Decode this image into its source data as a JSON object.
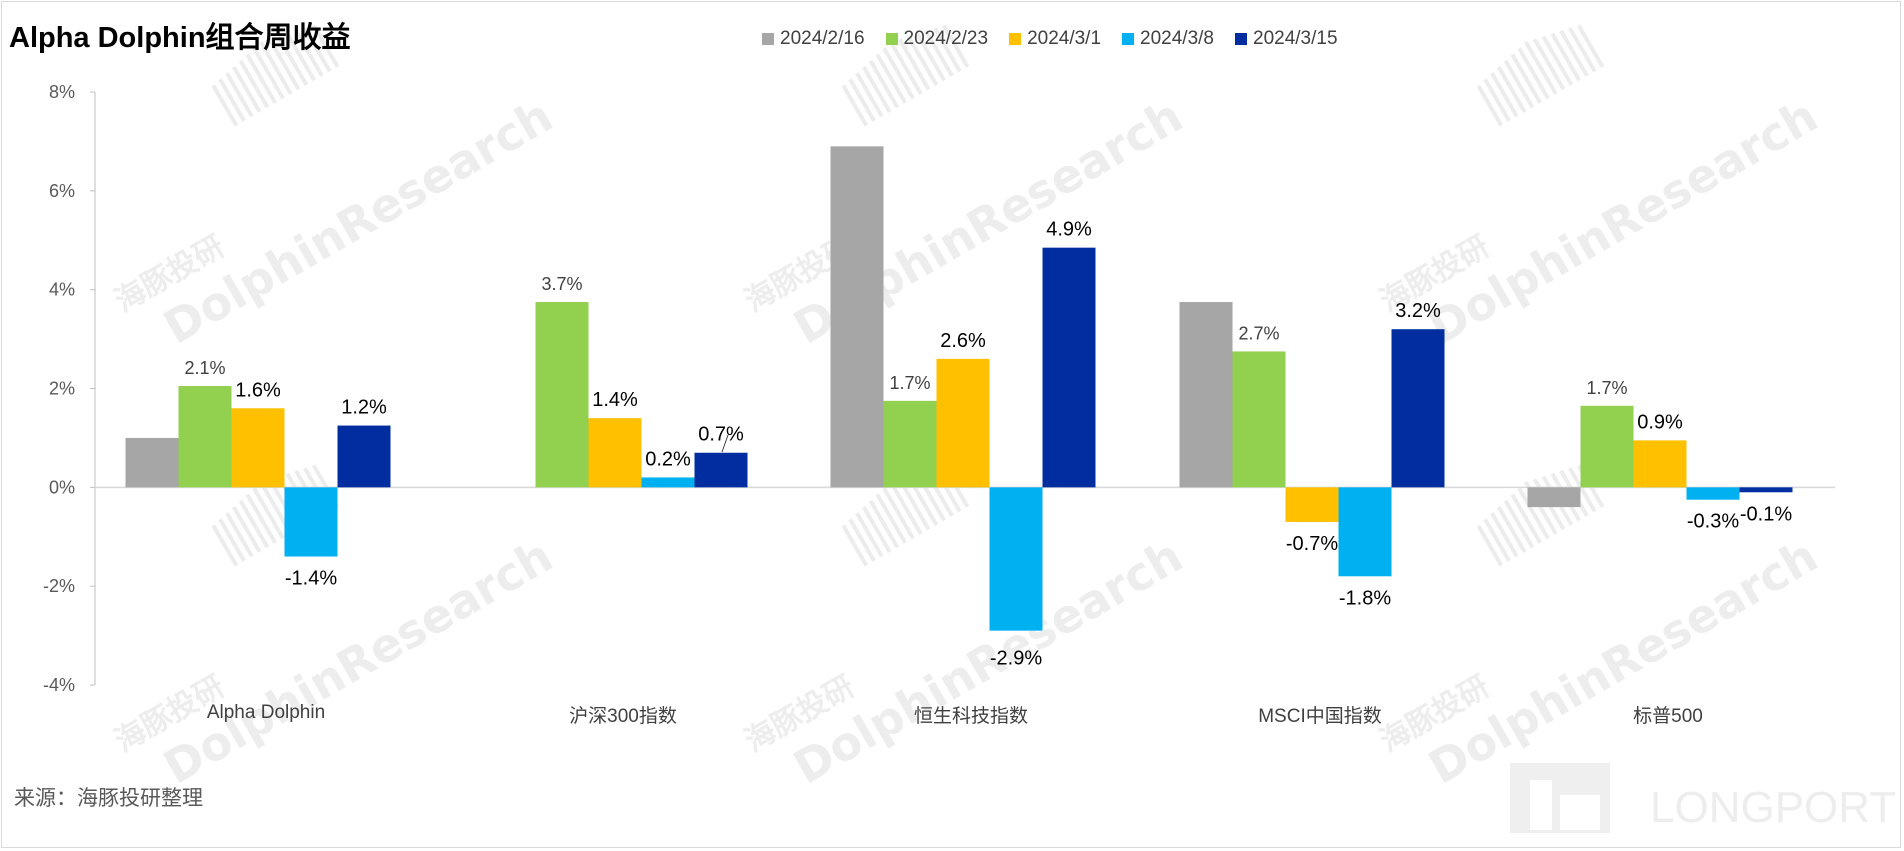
{
  "title": "Alpha Dolphin组合周收益",
  "source": "来源：海豚投研整理",
  "watermark": {
    "brand": "DolphinResearch",
    "cn": "海豚投研",
    "corner": "LONGPORT"
  },
  "chart_data": {
    "type": "bar",
    "categories": [
      "Alpha Dolphin",
      "沪深300指数",
      "恒生科技指数",
      "MSCI中国指数",
      "标普500"
    ],
    "series": [
      {
        "name": "2024/2/16",
        "color": "#a6a6a6",
        "values": [
          1.0,
          null,
          6.9,
          3.75,
          -0.4
        ],
        "labels": [
          "",
          "",
          "",
          "",
          ""
        ]
      },
      {
        "name": "2024/2/23",
        "color": "#92d050",
        "values": [
          2.05,
          3.75,
          1.75,
          2.75,
          1.65
        ],
        "labels": [
          "2.1%",
          "3.7%",
          "1.7%",
          "2.7%",
          "1.7%"
        ]
      },
      {
        "name": "2024/3/1",
        "color": "#ffc000",
        "values": [
          1.6,
          1.4,
          2.6,
          -0.7,
          0.95
        ],
        "labels": [
          "1.6%",
          "1.4%",
          "2.6%",
          "-0.7%",
          "0.9%"
        ]
      },
      {
        "name": "2024/3/8",
        "color": "#00b0f0",
        "values": [
          -1.4,
          0.2,
          -2.9,
          -1.8,
          -0.25
        ],
        "labels": [
          "-1.4%",
          "0.2%",
          "",
          "-1.8%",
          "-0.3%"
        ]
      },
      {
        "name": "2024/3/15",
        "color": "#002ea0",
        "values": [
          1.25,
          0.7,
          4.85,
          3.2,
          -0.1
        ],
        "labels": [
          "1.2%",
          "0.7%",
          "4.9%",
          "3.2%",
          "-0.1%"
        ]
      }
    ],
    "extra_labels": [
      {
        "category": 2,
        "series": 3,
        "text": "-2.9%"
      }
    ],
    "y_ticks": [
      "8%",
      "6%",
      "4%",
      "2%",
      "0%",
      "-2%",
      "-4%"
    ],
    "ylim": [
      -4,
      8
    ],
    "grid": false,
    "legend_position": "top"
  }
}
